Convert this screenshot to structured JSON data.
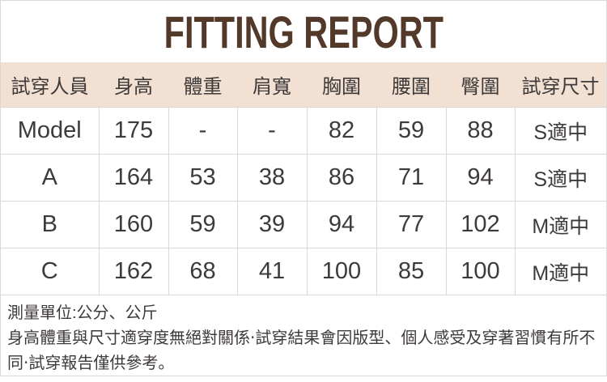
{
  "title": "FITTING REPORT",
  "table": {
    "headers": [
      "試穿人員",
      "身高",
      "體重",
      "肩寬",
      "胸圍",
      "腰圍",
      "臀圍",
      "試穿尺寸"
    ],
    "rows": [
      [
        "Model",
        "175",
        "-",
        "-",
        "82",
        "59",
        "88",
        "S適中"
      ],
      [
        "A",
        "164",
        "53",
        "38",
        "86",
        "71",
        "94",
        "S適中"
      ],
      [
        "B",
        "160",
        "59",
        "39",
        "94",
        "77",
        "102",
        "M適中"
      ],
      [
        "C",
        "162",
        "68",
        "41",
        "100",
        "85",
        "100",
        "M適中"
      ]
    ]
  },
  "footer": {
    "unit_note": "測量單位:公分、公斤",
    "disclaimer": "身高體重與尺寸適穿度無絕對關係‧試穿結果會因版型、個人感受及穿著習慣有所不同‧試穿報告僅供參考。"
  },
  "colors": {
    "title_brown": "#53392a",
    "header_bg": "#f2e0d3",
    "body_text": "#3e3a39",
    "border": "#d9d9d9"
  }
}
